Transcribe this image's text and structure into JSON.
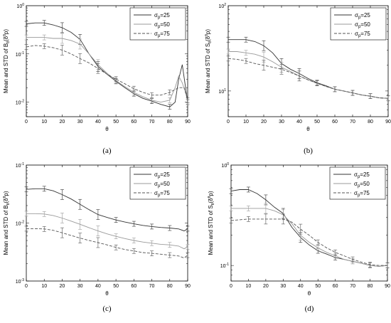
{
  "chart_data": [
    {
      "type": "line",
      "caption": "(a)",
      "xlabel": "θ",
      "ylabel": "Mean and STD of B_θ(δ^θ p)",
      "xticks": [
        0,
        10,
        20,
        30,
        40,
        50,
        60,
        70,
        80,
        90
      ],
      "yscale": "log",
      "ylim": [
        0.005,
        1
      ],
      "ytick_labels": [
        "10^-2",
        "10^-1",
        "10^0"
      ],
      "legend_position": "top-right",
      "series": [
        {
          "name": "σp=25",
          "style": "solid",
          "color": "#333333",
          "x": [
            0,
            5,
            10,
            15,
            20,
            25,
            30,
            35,
            40,
            45,
            50,
            55,
            60,
            65,
            70,
            75,
            80,
            83,
            85,
            87,
            89,
            90
          ],
          "y": [
            0.42,
            0.44,
            0.44,
            0.4,
            0.35,
            0.28,
            0.2,
            0.1,
            0.055,
            0.038,
            0.027,
            0.02,
            0.015,
            0.012,
            0.0105,
            0.009,
            0.008,
            0.01,
            0.03,
            0.06,
            0.018,
            0.01
          ]
        },
        {
          "name": "σp=50",
          "style": "solid",
          "color": "#9a9a9a",
          "x": [
            0,
            5,
            10,
            15,
            20,
            25,
            30,
            35,
            40,
            45,
            50,
            55,
            60,
            65,
            70,
            75,
            80,
            83,
            85,
            87,
            89,
            90
          ],
          "y": [
            0.22,
            0.22,
            0.22,
            0.21,
            0.21,
            0.19,
            0.16,
            0.1,
            0.06,
            0.04,
            0.028,
            0.021,
            0.016,
            0.013,
            0.011,
            0.01,
            0.011,
            0.02,
            0.035,
            0.025,
            0.015,
            0.01
          ]
        },
        {
          "name": "σp=75",
          "style": "dashed",
          "color": "#555555",
          "x": [
            0,
            5,
            10,
            15,
            20,
            25,
            30,
            35,
            40,
            45,
            50,
            55,
            60,
            65,
            70,
            75,
            80,
            85,
            88,
            90
          ],
          "y": [
            0.14,
            0.15,
            0.145,
            0.135,
            0.12,
            0.1,
            0.08,
            0.065,
            0.05,
            0.038,
            0.03,
            0.024,
            0.019,
            0.016,
            0.014,
            0.014,
            0.016,
            0.02,
            0.02,
            0.011
          ]
        }
      ]
    },
    {
      "type": "line",
      "caption": "(b)",
      "xlabel": "θ",
      "ylabel": "Mean and STD of S_θ(δ^θ p)",
      "xticks": [
        0,
        10,
        20,
        30,
        40,
        50,
        60,
        70,
        80,
        90
      ],
      "yscale": "log",
      "ylim": [
        5,
        100
      ],
      "ytick_labels": [
        "10^1",
        "10^2"
      ],
      "legend_position": "top-right",
      "series": [
        {
          "name": "σp=25",
          "style": "solid",
          "color": "#333333",
          "x": [
            0,
            5,
            10,
            15,
            20,
            25,
            30,
            35,
            40,
            45,
            50,
            55,
            60,
            65,
            70,
            75,
            80,
            85,
            90
          ],
          "y": [
            40,
            40,
            40,
            38,
            34,
            28,
            21,
            18,
            16,
            14,
            12.5,
            11.5,
            10.5,
            10,
            9.5,
            9,
            8.7,
            8.3,
            8.2
          ]
        },
        {
          "name": "σp=50",
          "style": "solid",
          "color": "#9a9a9a",
          "x": [
            0,
            5,
            10,
            15,
            20,
            25,
            30,
            35,
            40,
            45,
            50,
            55,
            60,
            65,
            70,
            75,
            80,
            85,
            90
          ],
          "y": [
            29,
            29,
            28,
            27,
            25,
            22,
            19,
            17,
            15,
            13.5,
            12.3,
            11.3,
            10.5,
            10,
            9.5,
            9,
            8.7,
            8.3,
            8.2
          ]
        },
        {
          "name": "σp=75",
          "style": "dashed",
          "color": "#555555",
          "x": [
            0,
            5,
            10,
            15,
            20,
            25,
            30,
            35,
            40,
            45,
            50,
            55,
            60,
            65,
            70,
            75,
            80,
            85,
            90
          ],
          "y": [
            24,
            23.5,
            22.5,
            21,
            20,
            19,
            18,
            16.5,
            15,
            13.5,
            12.3,
            11.3,
            10.5,
            10,
            9.5,
            9,
            8.7,
            8.3,
            8.2
          ]
        }
      ]
    },
    {
      "type": "line",
      "caption": "(c)",
      "xlabel": "θ",
      "ylabel": "Mean and STD of B_θ(δ^θ p)",
      "xticks": [
        0,
        10,
        20,
        30,
        40,
        50,
        60,
        70,
        80,
        90
      ],
      "yscale": "log",
      "ylim": [
        0.001,
        0.1
      ],
      "ytick_labels": [
        "10^-3",
        "10^-2",
        "10^-1"
      ],
      "legend_position": "top-right",
      "series": [
        {
          "name": "σp=25",
          "style": "solid",
          "color": "#333333",
          "x": [
            0,
            5,
            10,
            15,
            20,
            25,
            30,
            35,
            40,
            45,
            50,
            55,
            60,
            65,
            70,
            75,
            80,
            85,
            88,
            90
          ],
          "y": [
            0.038,
            0.039,
            0.039,
            0.036,
            0.031,
            0.026,
            0.021,
            0.017,
            0.014,
            0.0125,
            0.0113,
            0.0104,
            0.0097,
            0.0091,
            0.0087,
            0.0084,
            0.0082,
            0.0079,
            0.0073,
            0.008
          ]
        },
        {
          "name": "σp=50",
          "style": "solid",
          "color": "#9a9a9a",
          "x": [
            0,
            5,
            10,
            15,
            20,
            25,
            30,
            35,
            40,
            45,
            50,
            55,
            60,
            65,
            70,
            75,
            80,
            85,
            88,
            90
          ],
          "y": [
            0.0145,
            0.0145,
            0.0143,
            0.0135,
            0.0122,
            0.0108,
            0.0095,
            0.0083,
            0.0073,
            0.0065,
            0.0059,
            0.0054,
            0.005,
            0.0047,
            0.0045,
            0.0043,
            0.0042,
            0.004,
            0.0036,
            0.0039
          ]
        },
        {
          "name": "σp=75",
          "style": "dashed",
          "color": "#555555",
          "x": [
            0,
            5,
            10,
            15,
            20,
            25,
            30,
            35,
            40,
            45,
            50,
            55,
            60,
            65,
            70,
            75,
            80,
            85,
            88,
            90
          ],
          "y": [
            0.008,
            0.008,
            0.0079,
            0.0075,
            0.0068,
            0.0061,
            0.0055,
            0.005,
            0.0046,
            0.0042,
            0.0038,
            0.0035,
            0.0033,
            0.0031,
            0.003,
            0.0029,
            0.0028,
            0.0027,
            0.0025,
            0.0028
          ]
        }
      ]
    },
    {
      "type": "line",
      "caption": "(d)",
      "xlabel": "θ",
      "ylabel": "Mean and STD of S_θ(δ^θ p)",
      "xticks": [
        0,
        10,
        20,
        30,
        40,
        50,
        60,
        70,
        80,
        90
      ],
      "yscale": "log",
      "ylim": [
        0.07,
        1
      ],
      "ytick_labels": [
        "10^-1",
        "10^0"
      ],
      "legend_position": "top-right",
      "series": [
        {
          "name": "σp=25",
          "style": "solid",
          "color": "#333333",
          "x": [
            0,
            5,
            10,
            15,
            20,
            25,
            30,
            35,
            40,
            45,
            50,
            55,
            60,
            65,
            70,
            75,
            80,
            85,
            90
          ],
          "y": [
            0.55,
            0.57,
            0.57,
            0.52,
            0.45,
            0.38,
            0.33,
            0.24,
            0.19,
            0.16,
            0.14,
            0.13,
            0.12,
            0.115,
            0.11,
            0.105,
            0.1,
            0.098,
            0.1
          ]
        },
        {
          "name": "σp=50",
          "style": "solid",
          "color": "#9a9a9a",
          "x": [
            0,
            5,
            10,
            15,
            20,
            25,
            30,
            35,
            40,
            45,
            50,
            55,
            60,
            65,
            70,
            75,
            80,
            85,
            90
          ],
          "y": [
            0.37,
            0.37,
            0.37,
            0.37,
            0.37,
            0.35,
            0.32,
            0.26,
            0.2,
            0.17,
            0.15,
            0.135,
            0.125,
            0.115,
            0.11,
            0.105,
            0.1,
            0.098,
            0.1
          ]
        },
        {
          "name": "σp=75",
          "style": "dashed",
          "color": "#555555",
          "x": [
            0,
            5,
            10,
            15,
            20,
            25,
            30,
            35,
            40,
            45,
            50,
            55,
            60,
            65,
            70,
            75,
            80,
            85,
            90
          ],
          "y": [
            0.28,
            0.285,
            0.29,
            0.29,
            0.29,
            0.29,
            0.29,
            0.27,
            0.23,
            0.2,
            0.17,
            0.15,
            0.135,
            0.125,
            0.115,
            0.108,
            0.102,
            0.1,
            0.1
          ]
        }
      ]
    }
  ]
}
